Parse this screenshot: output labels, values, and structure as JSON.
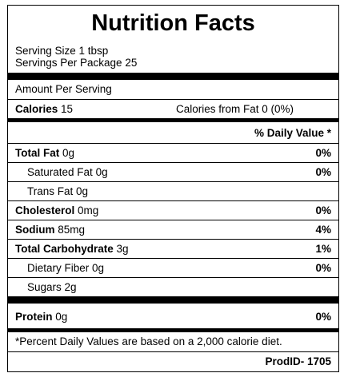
{
  "title": "Nutrition Facts",
  "serving_size": "Serving Size 1 tbsp",
  "servings_per_package": "Servings Per Package 25",
  "amount_per_serving": "Amount Per Serving",
  "calories": {
    "label": "Calories",
    "value": "15"
  },
  "calories_from_fat": "Calories from Fat 0 (0%)",
  "daily_value_header": "% Daily Value *",
  "nutrients": [
    {
      "name": "Total Fat",
      "amount": "0g",
      "dv": "0%"
    },
    {
      "name": "Saturated Fat",
      "amount": "0g",
      "dv": "0%"
    },
    {
      "name": "Trans Fat",
      "amount": "0g",
      "dv": ""
    },
    {
      "name": "Cholesterol",
      "amount": "0mg",
      "dv": "0%"
    },
    {
      "name": "Sodium",
      "amount": "85mg",
      "dv": "4%"
    },
    {
      "name": "Total Carbohydrate",
      "amount": "3g",
      "dv": "1%"
    },
    {
      "name": "Dietary Fiber",
      "amount": "0g",
      "dv": "0%"
    },
    {
      "name": "Sugars",
      "amount": "2g",
      "dv": ""
    },
    {
      "name": "Protein",
      "amount": "0g",
      "dv": "0%"
    }
  ],
  "footnote": "*Percent Daily Values are based on a 2,000 calorie diet.",
  "product_id": "ProdID- 1705"
}
